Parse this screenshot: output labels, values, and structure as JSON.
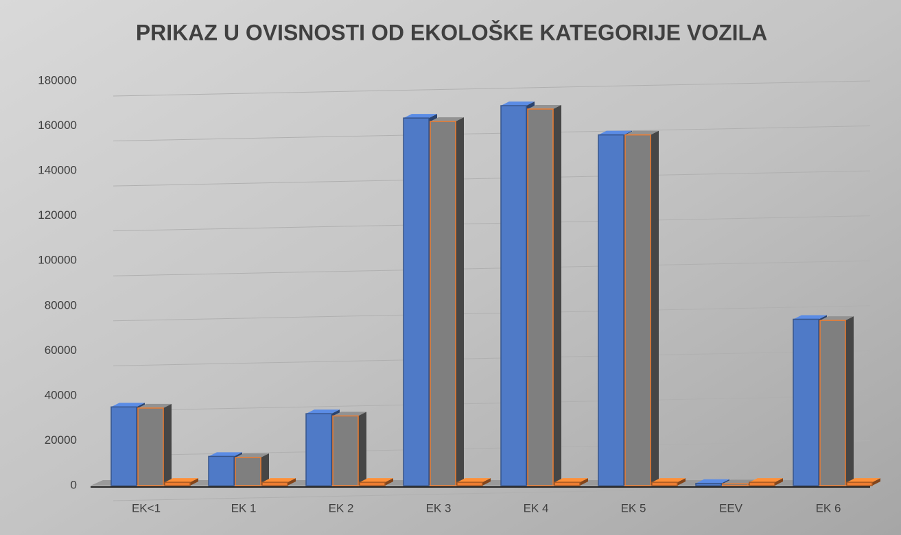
{
  "chart_data": {
    "type": "bar3d",
    "title": "PRIKAZ U OVISNOSTI OD EKOLOŠKE KATEGORIJE VOZILA",
    "categories": [
      "EK<1",
      "EK  1",
      "EK  2",
      "EK  3",
      "EK  4",
      "EK  5",
      "EEV",
      "EK  6"
    ],
    "series": [
      {
        "color": "#4f7ac7",
        "values": [
          35000,
          13000,
          32000,
          163500,
          169000,
          156000,
          1000,
          74000
        ]
      },
      {
        "color": "#7f7f7f",
        "values": [
          34500,
          12500,
          31000,
          162000,
          167500,
          156000,
          800,
          73500
        ]
      },
      {
        "color": "#ed7d31",
        "values": [
          1500,
          1500,
          1500,
          1500,
          1500,
          1500,
          1500,
          1500
        ]
      }
    ],
    "ylim": [
      0,
      180000
    ],
    "yticks": [
      0,
      20000,
      40000,
      60000,
      80000,
      100000,
      120000,
      140000,
      160000,
      180000
    ],
    "grid": true
  }
}
